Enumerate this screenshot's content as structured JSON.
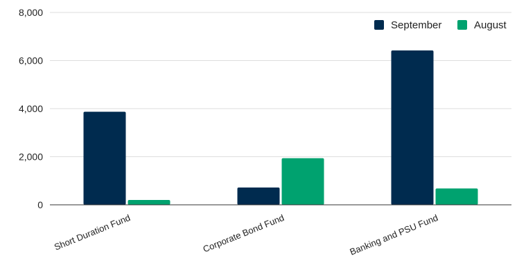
{
  "chart_data": {
    "type": "bar",
    "title": "",
    "xlabel": "",
    "ylabel": "",
    "categories": [
      "Short Duration Fund",
      "Corporate Bond Fund",
      "Banking and PSU Fund"
    ],
    "series": [
      {
        "name": "September",
        "values": [
          3870,
          720,
          6420
        ],
        "color": "#002b4f"
      },
      {
        "name": "August",
        "values": [
          200,
          1940,
          680
        ],
        "color": "#00a26f"
      }
    ],
    "ylim": [
      0,
      8000
    ],
    "yticks": [
      0,
      2000,
      4000,
      6000,
      8000
    ],
    "ytick_labels": [
      "0",
      "2,000",
      "4,000",
      "6,000",
      "8,000"
    ],
    "grid": true,
    "legend_position": "top-right"
  }
}
